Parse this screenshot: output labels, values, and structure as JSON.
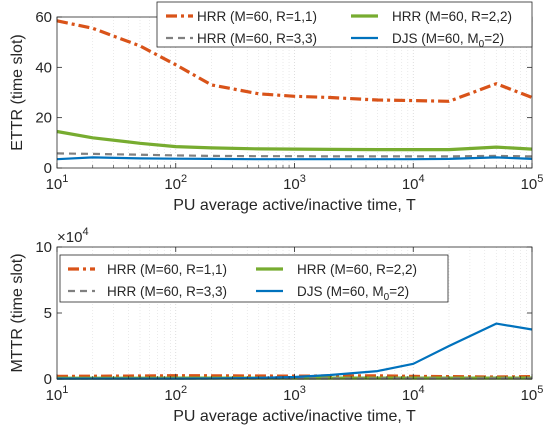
{
  "chart_data": [
    {
      "type": "line",
      "xscale": "log",
      "xlim": [
        10,
        100000
      ],
      "ylim": [
        0,
        60
      ],
      "xlabel": "PU average active/inactive time, T",
      "ylabel": "ETTR (time slot)",
      "yticks": [
        0,
        20,
        40,
        60
      ],
      "ytick_labels": [
        "0",
        "20",
        "40",
        "60"
      ],
      "grid": "x-major-and-minor",
      "legend_placement": "top-right",
      "series": [
        {
          "name": "HRR (M=60, R=1,1)",
          "color": "#D95319",
          "style": "dashdot",
          "x": [
            10,
            20,
            50,
            100,
            200,
            500,
            1000,
            2000,
            5000,
            10000,
            20000,
            50000,
            100000
          ],
          "y": [
            58.5,
            55.5,
            48.5,
            41,
            33,
            29.5,
            28.5,
            28,
            27,
            26.8,
            26.5,
            33.5,
            28
          ]
        },
        {
          "name": "HRR (M=60, R=2,2)",
          "color": "#77AC30",
          "style": "solid",
          "x": [
            10,
            20,
            50,
            100,
            200,
            500,
            1000,
            2000,
            5000,
            10000,
            20000,
            50000,
            100000
          ],
          "y": [
            14.5,
            12,
            9.8,
            8.5,
            8,
            7.6,
            7.5,
            7.4,
            7.3,
            7.3,
            7.3,
            8.3,
            7.5
          ]
        },
        {
          "name": "HRR (M=60, R=3,3)",
          "color": "#808080",
          "style": "dashed",
          "x": [
            10,
            20,
            50,
            100,
            200,
            500,
            1000,
            2000,
            5000,
            10000,
            20000,
            50000,
            100000
          ],
          "y": [
            5.8,
            5.6,
            5.3,
            5,
            4.8,
            4.7,
            4.7,
            4.6,
            4.6,
            4.6,
            4.6,
            4.8,
            4.6
          ]
        },
        {
          "name": "DJS (M=60, M0=2)",
          "legend_main": "DJS (M=60, M",
          "legend_sub": "0",
          "legend_tail": "=2)",
          "color": "#0072BD",
          "style": "solid",
          "x": [
            10,
            20,
            50,
            100,
            200,
            500,
            1000,
            2000,
            5000,
            10000,
            20000,
            50000,
            100000
          ],
          "y": [
            3.5,
            4.2,
            3.8,
            3.7,
            3.6,
            3.5,
            3.5,
            3.5,
            3.5,
            3.5,
            3.6,
            4.2,
            3.6
          ]
        }
      ]
    },
    {
      "type": "line",
      "xscale": "log",
      "xlim": [
        10,
        100000
      ],
      "ylim": [
        0,
        100000
      ],
      "xlabel": "PU average active/inactive time, T",
      "ylabel": "MTTR (time slot)",
      "yticks": [
        0,
        50000,
        100000
      ],
      "ytick_labels": [
        "0",
        "5",
        "10"
      ],
      "y_exponent": {
        "base": "×10",
        "power": "4"
      },
      "grid": "x-major-and-minor",
      "legend_placement": "top-center",
      "series": [
        {
          "name": "HRR (M=60, R=1,1)",
          "color": "#D95319",
          "style": "dashdot",
          "x": [
            10,
            20,
            50,
            100,
            200,
            500,
            1000,
            2000,
            5000,
            10000,
            20000,
            50000,
            100000
          ],
          "y": [
            2000,
            2100,
            2300,
            2500,
            2400,
            2300,
            2200,
            2300,
            2400,
            2000,
            1800,
            1500,
            1800
          ]
        },
        {
          "name": "HRR (M=60, R=2,2)",
          "color": "#77AC30",
          "style": "solid",
          "x": [
            10,
            20,
            50,
            100,
            200,
            500,
            1000,
            2000,
            5000,
            10000,
            20000,
            50000,
            100000
          ],
          "y": [
            600,
            600,
            600,
            650,
            650,
            650,
            650,
            700,
            700,
            700,
            700,
            700,
            700
          ]
        },
        {
          "name": "HRR (M=60, R=3,3)",
          "color": "#808080",
          "style": "dashed",
          "x": [
            10,
            20,
            50,
            100,
            200,
            500,
            1000,
            2000,
            5000,
            10000,
            20000,
            50000,
            100000
          ],
          "y": [
            400,
            400,
            400,
            400,
            400,
            400,
            400,
            400,
            400,
            400,
            400,
            400,
            400
          ]
        },
        {
          "name": "DJS (M=60, M0=2)",
          "legend_main": "DJS (M=60, M",
          "legend_sub": "0",
          "legend_tail": "=2)",
          "color": "#0072BD",
          "style": "solid",
          "x": [
            10,
            20,
            50,
            100,
            200,
            500,
            1000,
            2000,
            5000,
            10000,
            20000,
            50000,
            100000
          ],
          "y": [
            300,
            300,
            300,
            300,
            400,
            800,
            1500,
            3000,
            6000,
            11500,
            25000,
            42000,
            37500
          ]
        }
      ]
    }
  ]
}
